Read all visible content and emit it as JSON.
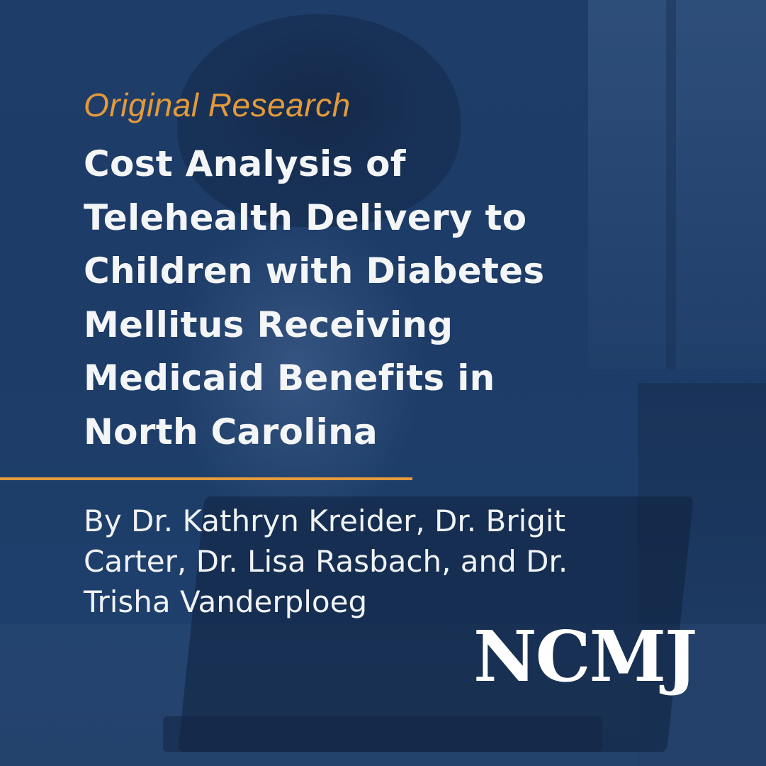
{
  "kicker": "Original Research",
  "title_lines": [
    "Cost Analysis of",
    "Telehealth Delivery to",
    "Children with Diabetes",
    "Mellitus Receiving",
    "Medicaid Benefits in",
    "North Carolina"
  ],
  "byline_lines": [
    "By Dr. Kathryn Kreider, Dr. Brigit",
    "Carter, Dr. Lisa Rasbach, and Dr.",
    "Trisha Vanderploeg"
  ],
  "logo": "NCMJ",
  "colors": {
    "background": "#1d3c67",
    "accent": "#e39a3b",
    "text": "#f4f5f7"
  }
}
